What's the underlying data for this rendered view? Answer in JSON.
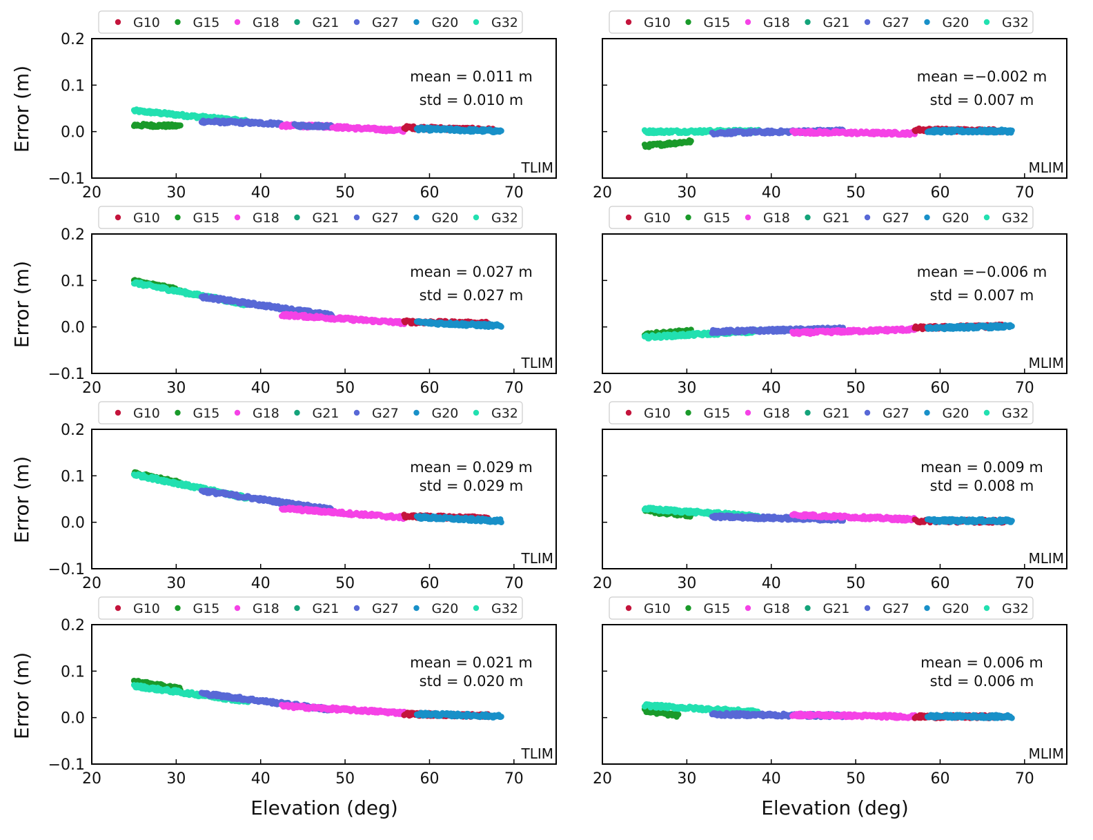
{
  "chart_data": {
    "type": "scatter",
    "grid": false,
    "legend_placement": "top-center, above each panel",
    "xlabel": "Elevation (deg)",
    "ylabel": "Error (m)",
    "xlim": [
      20,
      75
    ],
    "ylim": [
      -0.1,
      0.2
    ],
    "xticks": [
      "20",
      "30",
      "40",
      "50",
      "60",
      "70"
    ],
    "yticks": [
      "−0.1",
      "0.0",
      "0.1",
      "0.2"
    ],
    "series_legend": [
      {
        "name": "G10",
        "color": "#c4143c"
      },
      {
        "name": "G15",
        "color": "#1a9a2a"
      },
      {
        "name": "G18",
        "color": "#f542e6"
      },
      {
        "name": "G21",
        "color": "#14a37a"
      },
      {
        "name": "G27",
        "color": "#5868d6"
      },
      {
        "name": "G20",
        "color": "#1890c8"
      },
      {
        "name": "G32",
        "color": "#22e0b0"
      }
    ],
    "panels": [
      {
        "row": 0,
        "col": 0,
        "tag": "TLIM",
        "mean_text": "mean = 0.011 m",
        "std_text": "std = 0.010 m",
        "segments": [
          {
            "name": "G32",
            "x": [
              25.0,
              38.5
            ],
            "y": [
              0.045,
              0.022
            ]
          },
          {
            "name": "G15",
            "x": [
              25.0,
              30.5
            ],
            "y": [
              0.014,
              0.012
            ]
          },
          {
            "name": "G27",
            "x": [
              33.0,
              42.5
            ],
            "y": [
              0.022,
              0.017
            ]
          },
          {
            "name": "G18",
            "x": [
              42.5,
              48.5
            ],
            "y": [
              0.013,
              0.011
            ]
          },
          {
            "name": "G27",
            "x": [
              44.0,
              48.5
            ],
            "y": [
              0.013,
              0.012
            ]
          },
          {
            "name": "G18",
            "x": [
              48.5,
              57.0
            ],
            "y": [
              0.01,
              0.002
            ]
          },
          {
            "name": "G10",
            "x": [
              57.0,
              67.5
            ],
            "y": [
              0.009,
              0.004
            ]
          },
          {
            "name": "G20",
            "x": [
              58.5,
              68.5
            ],
            "y": [
              0.006,
              0.001
            ]
          }
        ]
      },
      {
        "row": 0,
        "col": 1,
        "tag": "MLIM",
        "mean_text": "mean =−0.002 m",
        "std_text": "std = 0.007 m",
        "segments": [
          {
            "name": "G15",
            "x": [
              25.0,
              30.5
            ],
            "y": [
              -0.031,
              -0.021
            ]
          },
          {
            "name": "G32",
            "x": [
              25.0,
              38.5
            ],
            "y": [
              0.0,
              0.001
            ]
          },
          {
            "name": "G27",
            "x": [
              33.0,
              48.5
            ],
            "y": [
              -0.003,
              0.002
            ]
          },
          {
            "name": "G18",
            "x": [
              42.5,
              57.0
            ],
            "y": [
              -0.001,
              -0.004
            ]
          },
          {
            "name": "G10",
            "x": [
              57.0,
              67.5
            ],
            "y": [
              0.004,
              0.002
            ]
          },
          {
            "name": "G20",
            "x": [
              58.5,
              68.5
            ],
            "y": [
              0.001,
              0.001
            ]
          }
        ]
      },
      {
        "row": 1,
        "col": 0,
        "tag": "TLIM",
        "mean_text": "mean = 0.027 m",
        "std_text": "std = 0.027 m",
        "segments": [
          {
            "name": "G15",
            "x": [
              25.0,
              30.5
            ],
            "y": [
              0.099,
              0.079
            ]
          },
          {
            "name": "G32",
            "x": [
              25.0,
              38.5
            ],
            "y": [
              0.095,
              0.048
            ]
          },
          {
            "name": "G27",
            "x": [
              33.0,
              48.5
            ],
            "y": [
              0.065,
              0.025
            ]
          },
          {
            "name": "G18",
            "x": [
              42.5,
              57.0
            ],
            "y": [
              0.026,
              0.009
            ]
          },
          {
            "name": "G10",
            "x": [
              57.0,
              67.0
            ],
            "y": [
              0.011,
              0.008
            ]
          },
          {
            "name": "G20",
            "x": [
              58.5,
              68.5
            ],
            "y": [
              0.01,
              0.002
            ]
          }
        ]
      },
      {
        "row": 1,
        "col": 1,
        "tag": "MLIM",
        "mean_text": "mean =−0.006 m",
        "std_text": "std = 0.007 m",
        "segments": [
          {
            "name": "G15",
            "x": [
              25.0,
              30.5
            ],
            "y": [
              -0.016,
              -0.009
            ]
          },
          {
            "name": "G32",
            "x": [
              25.0,
              38.5
            ],
            "y": [
              -0.022,
              -0.009
            ]
          },
          {
            "name": "G27",
            "x": [
              33.0,
              48.5
            ],
            "y": [
              -0.01,
              -0.004
            ]
          },
          {
            "name": "G18",
            "x": [
              42.5,
              57.0
            ],
            "y": [
              -0.013,
              -0.005
            ]
          },
          {
            "name": "G10",
            "x": [
              57.0,
              67.5
            ],
            "y": [
              -0.002,
              0.002
            ]
          },
          {
            "name": "G20",
            "x": [
              58.5,
              68.5
            ],
            "y": [
              -0.002,
              0.001
            ]
          }
        ]
      },
      {
        "row": 2,
        "col": 0,
        "tag": "TLIM",
        "mean_text": "mean = 0.029 m",
        "std_text": "std = 0.029 m",
        "segments": [
          {
            "name": "G15",
            "x": [
              25.0,
              30.5
            ],
            "y": [
              0.105,
              0.085
            ]
          },
          {
            "name": "G32",
            "x": [
              25.0,
              38.5
            ],
            "y": [
              0.103,
              0.052
            ]
          },
          {
            "name": "G27",
            "x": [
              33.0,
              48.5
            ],
            "y": [
              0.068,
              0.027
            ]
          },
          {
            "name": "G18",
            "x": [
              42.5,
              57.0
            ],
            "y": [
              0.03,
              0.01
            ]
          },
          {
            "name": "G10",
            "x": [
              57.0,
              67.0
            ],
            "y": [
              0.013,
              0.009
            ]
          },
          {
            "name": "G20",
            "x": [
              58.5,
              68.5
            ],
            "y": [
              0.011,
              0.003
            ]
          }
        ]
      },
      {
        "row": 2,
        "col": 1,
        "tag": "MLIM",
        "mean_text": "mean = 0.009 m",
        "std_text": "std = 0.008 m",
        "segments": [
          {
            "name": "G15",
            "x": [
              25.0,
              30.5
            ],
            "y": [
              0.024,
              0.015
            ]
          },
          {
            "name": "G32",
            "x": [
              25.0,
              38.5
            ],
            "y": [
              0.029,
              0.013
            ]
          },
          {
            "name": "G27",
            "x": [
              33.0,
              48.5
            ],
            "y": [
              0.012,
              0.006
            ]
          },
          {
            "name": "G18",
            "x": [
              42.5,
              57.0
            ],
            "y": [
              0.016,
              0.006
            ]
          },
          {
            "name": "G10",
            "x": [
              57.0,
              67.5
            ],
            "y": [
              0.003,
              0.002
            ]
          },
          {
            "name": "G20",
            "x": [
              58.5,
              68.5
            ],
            "y": [
              0.004,
              0.003
            ]
          }
        ]
      },
      {
        "row": 3,
        "col": 0,
        "tag": "TLIM",
        "mean_text": "mean = 0.021 m",
        "std_text": "std = 0.020 m",
        "segments": [
          {
            "name": "G15",
            "x": [
              25.0,
              30.5
            ],
            "y": [
              0.078,
              0.062
            ]
          },
          {
            "name": "G32",
            "x": [
              25.0,
              38.5
            ],
            "y": [
              0.068,
              0.035
            ]
          },
          {
            "name": "G27",
            "x": [
              33.0,
              48.5
            ],
            "y": [
              0.052,
              0.017
            ]
          },
          {
            "name": "G18",
            "x": [
              42.5,
              57.0
            ],
            "y": [
              0.025,
              0.01
            ]
          },
          {
            "name": "G10",
            "x": [
              57.0,
              67.0
            ],
            "y": [
              0.008,
              0.004
            ]
          },
          {
            "name": "G20",
            "x": [
              58.5,
              68.5
            ],
            "y": [
              0.008,
              0.003
            ]
          }
        ]
      },
      {
        "row": 3,
        "col": 1,
        "tag": "MLIM",
        "mean_text": "mean = 0.006 m",
        "std_text": "std = 0.006 m",
        "segments": [
          {
            "name": "G15",
            "x": [
              25.0,
              29.0
            ],
            "y": [
              0.015,
              0.004
            ]
          },
          {
            "name": "G32",
            "x": [
              25.0,
              38.5
            ],
            "y": [
              0.026,
              0.012
            ]
          },
          {
            "name": "G27",
            "x": [
              33.0,
              48.5
            ],
            "y": [
              0.007,
              0.004
            ]
          },
          {
            "name": "G18",
            "x": [
              42.5,
              57.0
            ],
            "y": [
              0.006,
              0.002
            ]
          },
          {
            "name": "G10",
            "x": [
              57.0,
              67.5
            ],
            "y": [
              0.002,
              0.002
            ]
          },
          {
            "name": "G20",
            "x": [
              58.5,
              68.5
            ],
            "y": [
              0.003,
              0.002
            ]
          }
        ]
      }
    ]
  }
}
